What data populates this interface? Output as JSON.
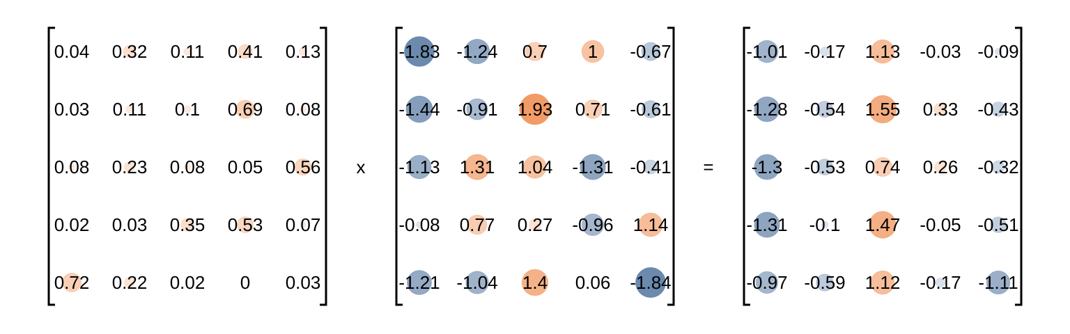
{
  "matrices": [
    {
      "rows": [
        [
          "0.04",
          "0.32",
          "0.11",
          "0.41",
          "0.13"
        ],
        [
          "0.03",
          "0.11",
          "0.1",
          "0.69",
          "0.08"
        ],
        [
          "0.08",
          "0.23",
          "0.08",
          "0.05",
          "0.56"
        ],
        [
          "0.02",
          "0.03",
          "0.35",
          "0.53",
          "0.07"
        ],
        [
          "0.72",
          "0.22",
          "0.02",
          "0",
          "0.03"
        ]
      ]
    },
    {
      "rows": [
        [
          "-1.83",
          "-1.24",
          "0.7",
          "1",
          "-0.67"
        ],
        [
          "-1.44",
          "-0.91",
          "1.93",
          "0.71",
          "-0.61"
        ],
        [
          "-1.13",
          "1.31",
          "1.04",
          "-1.31",
          "-0.41"
        ],
        [
          "-0.08",
          "0.77",
          "0.27",
          "-0.96",
          "1.14"
        ],
        [
          "-1.21",
          "-1.04",
          "1.4",
          "0.06",
          "-1.84"
        ]
      ]
    },
    {
      "rows": [
        [
          "-1.01",
          "-0.17",
          "1.13",
          "-0.03",
          "-0.09"
        ],
        [
          "-1.28",
          "-0.54",
          "1.55",
          "0.33",
          "-0.43"
        ],
        [
          "-1.3",
          "-0.53",
          "0.74",
          "0.26",
          "-0.32"
        ],
        [
          "-1.31",
          "-0.1",
          "1.47",
          "-0.05",
          "-0.51"
        ],
        [
          "-0.97",
          "-0.59",
          "1.12",
          "-0.17",
          "-1.11"
        ]
      ]
    }
  ],
  "operators": {
    "times": "x",
    "equals": "="
  },
  "colors": {
    "negative": "#4a6f9c",
    "positive": "#f08a4b",
    "text": "#000000",
    "bracket": "#000000"
  }
}
